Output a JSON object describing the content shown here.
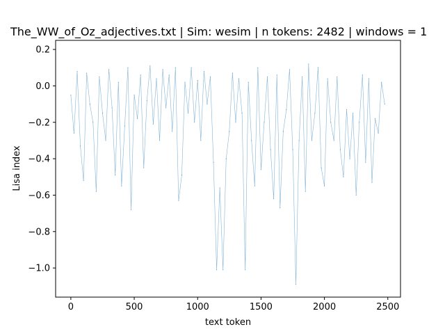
{
  "chart_data": {
    "type": "line",
    "title": "The_WW_of_Oz_adjectives.txt | Sim: wesim | n tokens: 2482 | windows = 1",
    "xlabel": "text token",
    "ylabel": "Lisa index",
    "xlim": [
      -120,
      2600
    ],
    "ylim": [
      -1.16,
      0.25
    ],
    "xticks": [
      0,
      500,
      1000,
      1500,
      2000,
      2500
    ],
    "xtick_labels": [
      "0",
      "500",
      "1000",
      "1500",
      "2000",
      "2500"
    ],
    "yticks": [
      0.2,
      0.0,
      -0.2,
      -0.4,
      -0.6,
      -0.8,
      -1.0
    ],
    "ytick_labels": [
      "0.2",
      "0.0",
      "−0.2",
      "−0.4",
      "−0.6",
      "−0.8",
      "−1.0"
    ],
    "grid": false,
    "series": [
      {
        "color": "#1f77b4",
        "x": [
          0,
          25,
          50,
          75,
          100,
          125,
          150,
          175,
          200,
          225,
          250,
          275,
          300,
          325,
          350,
          375,
          400,
          425,
          450,
          475,
          500,
          525,
          550,
          575,
          600,
          625,
          650,
          675,
          700,
          725,
          750,
          775,
          800,
          825,
          850,
          875,
          900,
          925,
          950,
          975,
          1000,
          1025,
          1050,
          1075,
          1100,
          1125,
          1150,
          1175,
          1200,
          1225,
          1250,
          1275,
          1300,
          1325,
          1350,
          1375,
          1400,
          1425,
          1450,
          1475,
          1500,
          1525,
          1550,
          1575,
          1600,
          1625,
          1650,
          1675,
          1700,
          1725,
          1750,
          1775,
          1800,
          1825,
          1850,
          1875,
          1900,
          1925,
          1950,
          1975,
          2000,
          2025,
          2050,
          2075,
          2100,
          2125,
          2150,
          2175,
          2200,
          2225,
          2250,
          2275,
          2300,
          2325,
          2350,
          2375,
          2400,
          2425,
          2450,
          2475
        ],
        "y": [
          -0.05,
          -0.26,
          0.08,
          -0.33,
          -0.52,
          0.07,
          -0.1,
          -0.2,
          -0.58,
          0.05,
          -0.15,
          -0.3,
          0.09,
          -0.12,
          -0.49,
          0.02,
          -0.55,
          -0.22,
          0.1,
          -0.68,
          -0.05,
          -0.18,
          0.06,
          -0.45,
          -0.08,
          0.11,
          -0.21,
          0.04,
          -0.3,
          0.09,
          -0.12,
          0.06,
          -0.25,
          0.1,
          -0.63,
          -0.49,
          0.02,
          -0.15,
          0.1,
          -0.2,
          0.03,
          -0.3,
          0.08,
          -0.1,
          0.05,
          -0.42,
          -1.01,
          -0.56,
          -1.01,
          -0.4,
          -0.25,
          0.07,
          -0.2,
          0.04,
          -0.15,
          -1.01,
          0.02,
          -0.3,
          -0.55,
          0.1,
          -0.46,
          -0.2,
          0.05,
          -0.35,
          -0.62,
          0.06,
          -0.67,
          -0.25,
          -0.13,
          0.09,
          -0.35,
          -1.09,
          -0.3,
          0.05,
          -0.58,
          0.12,
          -0.3,
          -0.15,
          0.1,
          -0.45,
          -0.55,
          0.04,
          -0.2,
          -0.3,
          0.05,
          -0.35,
          -0.5,
          -0.13,
          -0.4,
          -0.15,
          -0.6,
          -0.2,
          0.06,
          -0.42,
          0.04,
          -0.53,
          -0.18,
          -0.26,
          0.02,
          -0.1
        ]
      }
    ]
  }
}
